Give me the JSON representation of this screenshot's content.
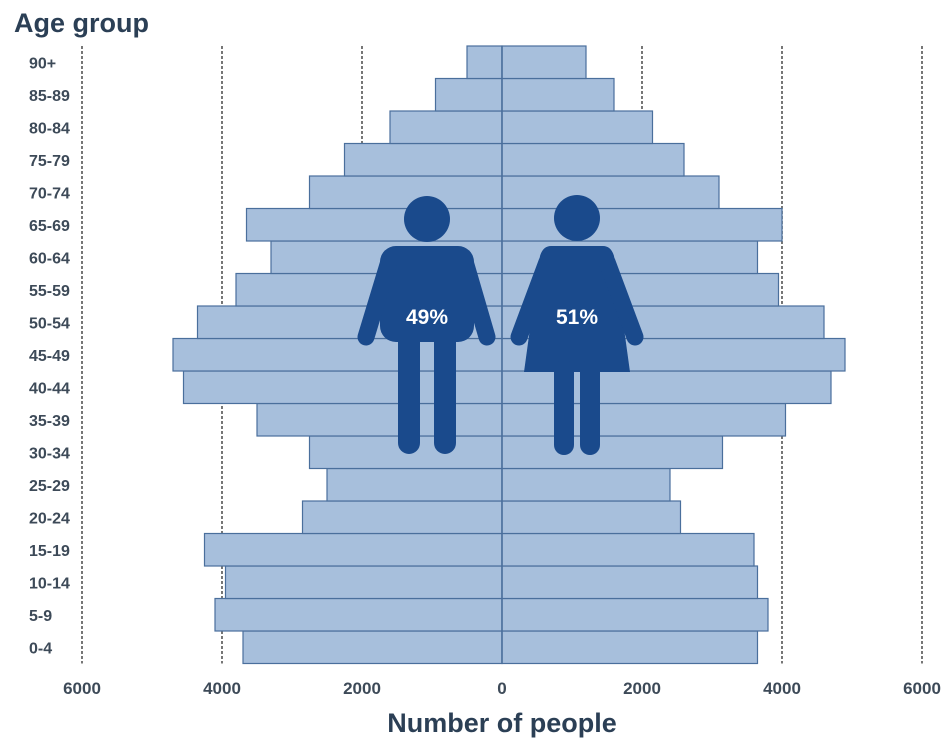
{
  "chart_data": {
    "type": "bar",
    "subtype": "population-pyramid",
    "ylabel": "Age group",
    "xlabel": "Number of people",
    "categories": [
      "0-4",
      "5-9",
      "10-14",
      "15-19",
      "20-24",
      "25-29",
      "30-34",
      "35-39",
      "40-44",
      "45-49",
      "50-54",
      "55-59",
      "60-64",
      "65-69",
      "70-74",
      "75-79",
      "80-84",
      "85-89",
      "90+"
    ],
    "series": [
      {
        "values": [
          3700,
          4100,
          3950,
          4250,
          2850,
          2500,
          2750,
          3500,
          4550,
          4700,
          4350,
          3800,
          3300,
          3650,
          2750,
          2250,
          1600,
          950,
          500
        ]
      },
      {
        "values": [
          3650,
          3800,
          3650,
          3600,
          2550,
          2400,
          3150,
          4050,
          4700,
          4900,
          4600,
          3950,
          3650,
          4000,
          3100,
          2600,
          2150,
          1600,
          1200
        ]
      }
    ],
    "x_ticks": [
      "6000",
      "4000",
      "2000",
      "0",
      "2000",
      "4000",
      "6000"
    ],
    "xlim": [
      -6000,
      6000
    ],
    "grid": "vertical dashed lines at 2000 intervals",
    "bar_color": "#a7bfdc",
    "bar_edge_color": "#4a6f9c",
    "icons": [
      {
        "name": "male-figure-icon",
        "label": "49%",
        "color": "#1a4a8c"
      },
      {
        "name": "female-figure-icon",
        "label": "51%",
        "color": "#1a4a8c"
      }
    ]
  }
}
